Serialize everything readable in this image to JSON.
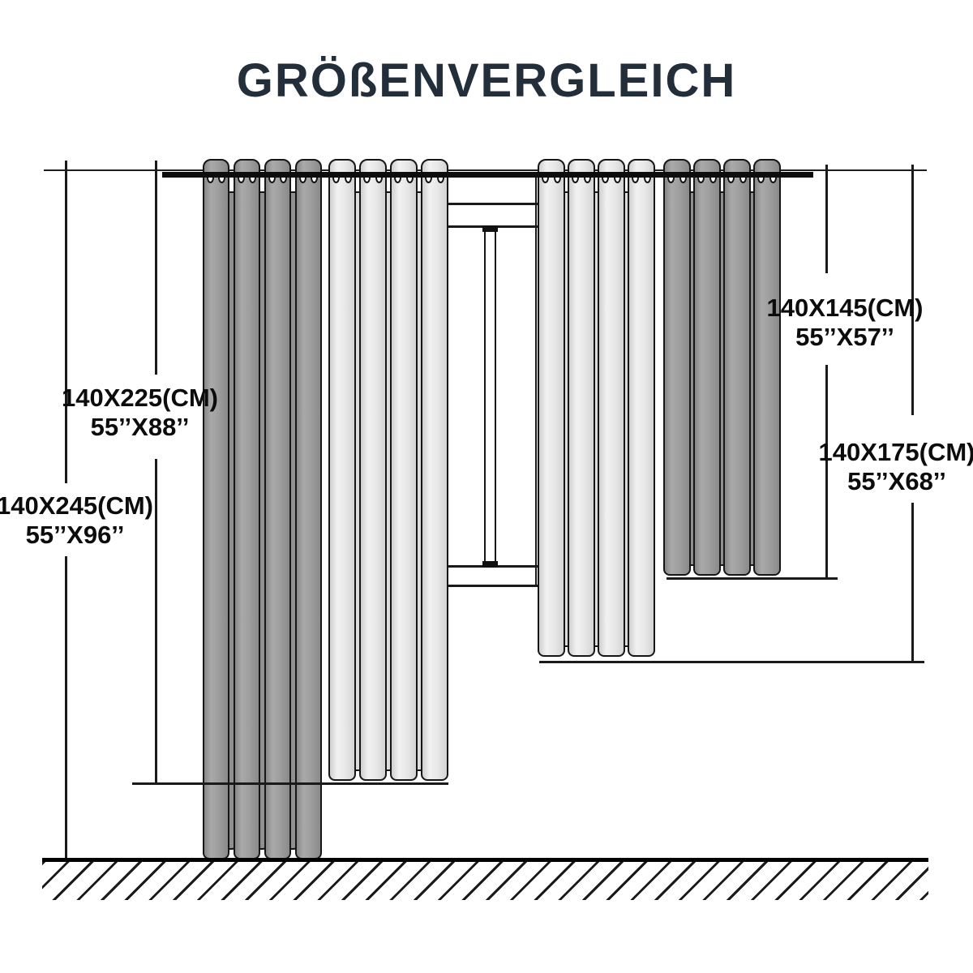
{
  "title": "GRÖßENVERGLEICH",
  "labels": [
    {
      "id": "size-225",
      "cm": "140X225(CM)",
      "inch": "55’’X88’’"
    },
    {
      "id": "size-245",
      "cm": "140X245(CM)",
      "inch": "55’’X96’’"
    },
    {
      "id": "size-145",
      "cm": "140X145(CM)",
      "inch": "55’’X57’’"
    },
    {
      "id": "size-175",
      "cm": "140X175(CM)",
      "inch": "55’’X68’’"
    }
  ],
  "colors": {
    "title": "#232e3b",
    "line": "#1a1a1a",
    "curtain_dark": "#9b9b9b",
    "curtain_light": "#e4e4e4"
  }
}
